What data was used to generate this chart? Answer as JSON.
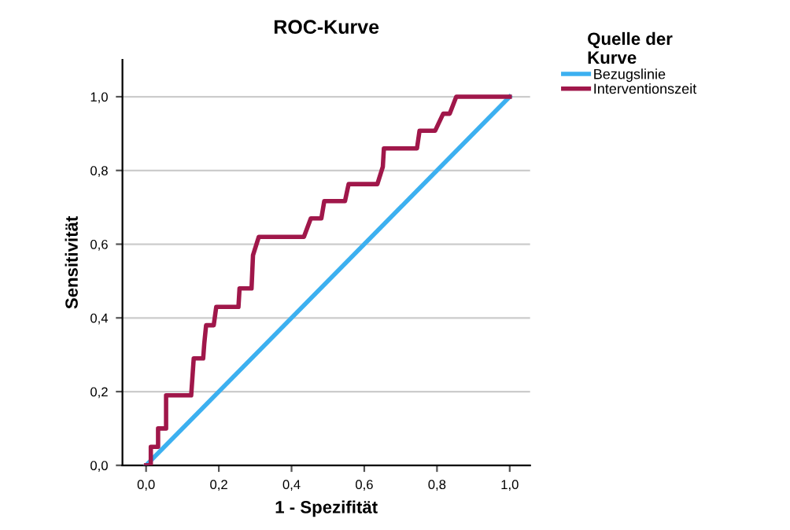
{
  "chart_data": {
    "type": "line",
    "title": "ROC-Kurve",
    "xlabel": "1 - Spezifität",
    "ylabel": "Sensitivität",
    "legend_title": "Quelle der\nKurve",
    "legend": "top right",
    "grid": "y",
    "line_style": "solid",
    "xlim": [
      -0.065,
      1.056
    ],
    "ylim": [
      0,
      1.1
    ],
    "xticks": [
      {
        "value": 0,
        "label": "0,0"
      },
      {
        "value": 0.2,
        "label": "0,2"
      },
      {
        "value": 0.4,
        "label": "0,4"
      },
      {
        "value": 0.6,
        "label": "0,6"
      },
      {
        "value": 0.8,
        "label": "0,8"
      },
      {
        "value": 1,
        "label": "1,0"
      }
    ],
    "yticks": [
      {
        "value": 0,
        "label": "0,0"
      },
      {
        "value": 0.2,
        "label": "0,2"
      },
      {
        "value": 0.4,
        "label": "0,4"
      },
      {
        "value": 0.6,
        "label": "0,6"
      },
      {
        "value": 0.8,
        "label": "0,8"
      },
      {
        "value": 1,
        "label": "1,0"
      }
    ],
    "series": [
      {
        "name": "Bezugslinie",
        "color": "#3cb0f0",
        "x": [
          0,
          1
        ],
        "values": [
          0,
          1
        ]
      },
      {
        "name": "Interventionszeit",
        "color": "#a0174a",
        "x": [
          0,
          0.013,
          0.013,
          0.033,
          0.033,
          0.055,
          0.055,
          0.124,
          0.131,
          0.157,
          0.16,
          0.165,
          0.186,
          0.193,
          0.254,
          0.257,
          0.29,
          0.294,
          0.31,
          0.434,
          0.453,
          0.482,
          0.49,
          0.547,
          0.557,
          0.636,
          0.651,
          0.654,
          0.745,
          0.752,
          0.795,
          0.817,
          0.835,
          0.853,
          1.0
        ],
        "values": [
          0,
          0,
          0.05,
          0.05,
          0.1,
          0.1,
          0.19,
          0.19,
          0.29,
          0.29,
          0.33,
          0.38,
          0.38,
          0.43,
          0.43,
          0.48,
          0.48,
          0.57,
          0.62,
          0.62,
          0.67,
          0.67,
          0.717,
          0.717,
          0.763,
          0.763,
          0.81,
          0.86,
          0.86,
          0.908,
          0.908,
          0.954,
          0.954,
          1,
          1
        ]
      }
    ]
  }
}
